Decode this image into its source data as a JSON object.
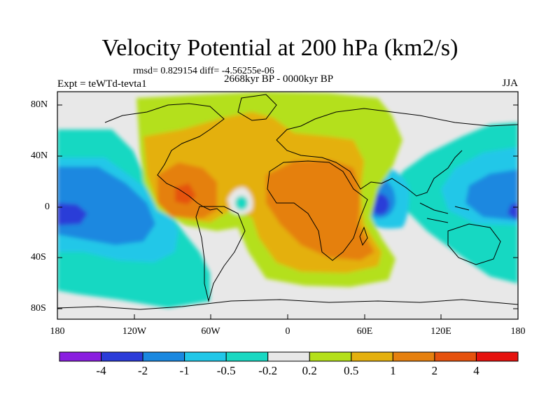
{
  "title": "Velocity Potential at 200 hPa (km2/s)",
  "stats": "rmsd= 0.829154 diff= -4.56255e-06",
  "experiment": "Expt = teWTd-tevta1",
  "period": "2668kyr BP - 0000kyr BP",
  "season": "JJA",
  "lat_ticks": [
    "80N",
    "40N",
    "0",
    "40S",
    "80S"
  ],
  "lon_ticks": [
    "180",
    "120W",
    "60W",
    "0",
    "60E",
    "120E",
    "180"
  ],
  "colorbar": {
    "labels": [
      "-4",
      "-2",
      "-1",
      "-0.5",
      "-0.2",
      "0.2",
      "0.5",
      "1",
      "2",
      "4"
    ],
    "colors": [
      "#8a1fe0",
      "#2b3cd8",
      "#1a88e0",
      "#21c7e8",
      "#19d8c2",
      "#e8e8e8",
      "#b4e01a",
      "#e4b00f",
      "#e5800f",
      "#e5520e",
      "#e5120e"
    ]
  }
}
